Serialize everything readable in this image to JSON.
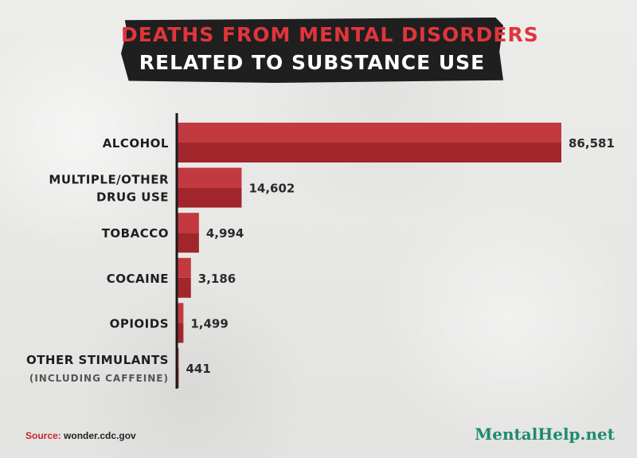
{
  "header": {
    "title_line1": "DEATHS FROM MENTAL DISORDERS",
    "title_line2": "RELATED TO SUBSTANCE USE"
  },
  "footer": {
    "source_label": "Source:",
    "source_value": "wonder.cdc.gov",
    "brand": "MentalHelp.net"
  },
  "colors": {
    "bar_top": "#c23a40",
    "bar_bottom": "#a0262c",
    "axis": "#1a1a1a",
    "title_accent": "#e0353b",
    "brand": "#1f8a71"
  },
  "chart_data": {
    "type": "bar",
    "orientation": "horizontal",
    "categories": [
      [
        "ALCOHOL"
      ],
      [
        "MULTIPLE/OTHER",
        "DRUG USE"
      ],
      [
        "TOBACCO"
      ],
      [
        "COCAINE"
      ],
      [
        "OPIOIDS"
      ],
      [
        "OTHER STIMULANTS",
        "(INCLUDING CAFFEINE)"
      ]
    ],
    "values": [
      86581,
      14602,
      4994,
      3186,
      1499,
      441
    ],
    "value_labels": [
      "86,581",
      "14,602",
      "4,994",
      "3,186",
      "1,499",
      "441"
    ],
    "title": "DEATHS FROM MENTAL DISORDERS RELATED TO SUBSTANCE USE",
    "xlabel": "",
    "ylabel": "",
    "xlim": [
      0,
      86581
    ],
    "grid": false,
    "legend": "none"
  }
}
